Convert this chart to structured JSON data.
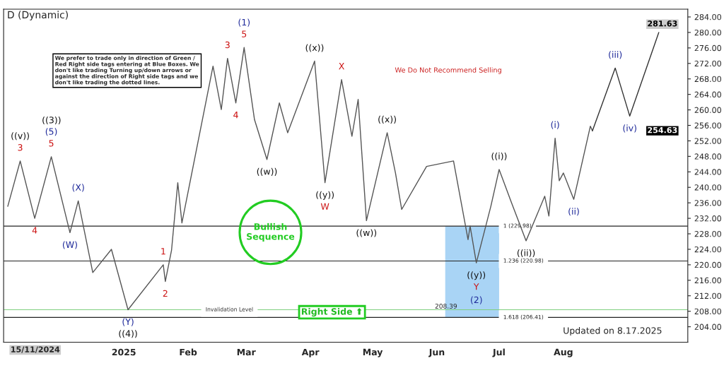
{
  "chart_data": {
    "type": "line",
    "title": "D (Dynamic)",
    "series": [
      {
        "color": "#555555",
        "line_style": "solid",
        "x": [
          "2024-11-06",
          "2024-11-12",
          "2024-11-19",
          "2024-11-27",
          "2024-12-06",
          "2024-12-10",
          "2024-12-17",
          "2024-12-26",
          "2025-01-03",
          "2025-01-20",
          "2025-01-21",
          "2025-01-24",
          "2025-01-27",
          "2025-01-29",
          "2025-02-13",
          "2025-02-17",
          "2025-02-20",
          "2025-02-24",
          "2025-02-28",
          "2025-03-05",
          "2025-03-11",
          "2025-03-17",
          "2025-03-21",
          "2025-04-03",
          "2025-04-08",
          "2025-04-16",
          "2025-04-21",
          "2025-04-24",
          "2025-04-28",
          "2025-05-08",
          "2025-05-12",
          "2025-05-15",
          "2025-05-27",
          "2025-06-09",
          "2025-06-16",
          "2025-06-17",
          "2025-06-20",
          "2025-06-27",
          "2025-07-01",
          "2025-07-07",
          "2025-07-14",
          "2025-07-23",
          "2025-07-25",
          "2025-07-28",
          "2025-07-30",
          "2025-08-01",
          "2025-08-06",
          "2025-08-14",
          "2025-08-15"
        ],
        "values": [
          235.1,
          246.8,
          232.0,
          247.9,
          228.3,
          236.5,
          218.0,
          224.0,
          208.4,
          220.0,
          215.7,
          223.8,
          241.2,
          230.8,
          271.3,
          260.1,
          273.3,
          261.8,
          276.1,
          257.5,
          247.2,
          261.8,
          254.1,
          272.6,
          241.2,
          267.8,
          253.2,
          262.7,
          231.4,
          254.1,
          243.7,
          234.3,
          245.4,
          246.8,
          226.5,
          230.0,
          220.5,
          235.1,
          244.6,
          236.0,
          226.2,
          237.7,
          232.6,
          252.7,
          241.7,
          243.7,
          236.9,
          255.8,
          254.6
        ]
      },
      {
        "color": "#333333",
        "line_style": "solid",
        "x": [
          "2025-08-15",
          "2025-08-26",
          "2025-09-02",
          "2025-09-16"
        ],
        "values": [
          254.6,
          270.8,
          258.4,
          280.0
        ]
      }
    ],
    "xlim": [
      "2024-11-04",
      "2025-09-30"
    ],
    "xticks": [
      {
        "value": "2025-01-01",
        "label": "2025"
      },
      {
        "value": "2025-02-01",
        "label": "Feb"
      },
      {
        "value": "2025-03-01",
        "label": "Mar"
      },
      {
        "value": "2025-04-01",
        "label": "Apr"
      },
      {
        "value": "2025-05-01",
        "label": "May"
      },
      {
        "value": "2025-06-01",
        "label": "Jun"
      },
      {
        "value": "2025-07-01",
        "label": "Jul"
      },
      {
        "value": "2025-08-01",
        "label": "Aug"
      }
    ],
    "ylim": [
      200,
      286
    ],
    "yticks": [
      {
        "value": 204,
        "label": "204.00"
      },
      {
        "value": 208,
        "label": "208.00"
      },
      {
        "value": 212,
        "label": "212.00"
      },
      {
        "value": 216,
        "label": "216.00"
      },
      {
        "value": 220,
        "label": "220.00"
      },
      {
        "value": 224,
        "label": "224.00"
      },
      {
        "value": 228,
        "label": "228.00"
      },
      {
        "value": 232,
        "label": "232.00"
      },
      {
        "value": 236,
        "label": "236.00"
      },
      {
        "value": 240,
        "label": "240.00"
      },
      {
        "value": 244,
        "label": "244.00"
      },
      {
        "value": 248,
        "label": "248.00"
      },
      {
        "value": 252,
        "label": "252.00"
      },
      {
        "value": 256,
        "label": "256.00"
      },
      {
        "value": 260,
        "label": "260.00"
      },
      {
        "value": 264,
        "label": "264.00"
      },
      {
        "value": 268,
        "label": "268.00"
      },
      {
        "value": 272,
        "label": "272.00"
      },
      {
        "value": 276,
        "label": "276.00"
      },
      {
        "value": 280,
        "label": "280.00"
      },
      {
        "value": 284,
        "label": "284.00"
      }
    ],
    "grid": false,
    "legend": false,
    "bands": [
      {
        "axis": "x",
        "from": "2025-06-05",
        "to": "2025-07-01",
        "color": "#a9d4f5"
      }
    ],
    "ref_lines": [
      {
        "axis": "y",
        "value": 208.39,
        "label": "Invalidation Level",
        "color": "#7fcf7f"
      },
      {
        "axis": "y",
        "value": 229.98,
        "label": "1 (229.98)",
        "color": "#222222"
      },
      {
        "axis": "y",
        "value": 220.98,
        "label": "1.236 (220.98)",
        "color": "#222222"
      },
      {
        "axis": "y",
        "value": 206.41,
        "label": "1.618 (206.41)",
        "color": "#222222"
      }
    ],
    "annotations": [
      "We prefer to trade only in direction of Green / Red Right side tags entering at Blue Boxes. We don't like trading Turning up/down arrows or against the direction of Right side tags and we don't like trading the dotted lines.",
      "We Do Not Recommend Selling",
      "Bullish Sequence",
      "Right Side ⬆",
      "Updated on 8.17.2025",
      "15/11/2024",
      {
        "text": "208.39",
        "x": "2025-05-31",
        "y": 208.39
      },
      "281.63",
      "254.63",
      {
        "text": "((v))",
        "x": "2024-11-12",
        "y": 246.8
      },
      {
        "text": "3",
        "x": "2024-11-12",
        "y": 246.8
      },
      {
        "text": "4",
        "x": "2024-11-19",
        "y": 232.0
      },
      "((3))",
      {
        "text": "(5)",
        "x": "2024-11-27",
        "y": 247.9
      },
      {
        "text": "5",
        "x": "2024-11-27",
        "y": 247.9
      },
      {
        "text": "(X)",
        "x": "2024-12-10",
        "y": 236.5
      },
      {
        "text": "(W)",
        "x": "2024-12-06",
        "y": 228.3
      },
      {
        "text": "(Y)",
        "x": "2025-01-03",
        "y": 208.4
      },
      {
        "text": "((4))",
        "x": "2025-01-03",
        "y": 208.4
      },
      {
        "text": "1",
        "x": "2025-01-20",
        "y": 220.0
      },
      {
        "text": "2",
        "x": "2025-01-21",
        "y": 215.7
      },
      {
        "text": "3",
        "x": "2025-02-20",
        "y": 273.3
      },
      {
        "text": "4",
        "x": "2025-02-24",
        "y": 261.8
      },
      {
        "text": "(1)",
        "x": "2025-02-28",
        "y": 276.1
      },
      {
        "text": "5",
        "x": "2025-02-28",
        "y": 276.1
      },
      {
        "text": "((w))",
        "x": "2025-03-11",
        "y": 247.2
      },
      {
        "text": "((x))",
        "x": "2025-04-03",
        "y": 272.6
      },
      {
        "text": "X",
        "x": "2025-04-16",
        "y": 267.8
      },
      {
        "text": "((y))",
        "x": "2025-04-08",
        "y": 241.2
      },
      {
        "text": "W",
        "x": "2025-04-08",
        "y": 241.2
      },
      {
        "text": "((w))",
        "x": "2025-04-28",
        "y": 231.4
      },
      {
        "text": "((x))",
        "x": "2025-05-08",
        "y": 254.1
      },
      {
        "text": "((i))",
        "x": "2025-07-01",
        "y": 244.6
      },
      {
        "text": "((ii))",
        "x": "2025-07-14",
        "y": 226.2
      },
      {
        "text": "((y))",
        "x": "2025-06-20",
        "y": 220.5
      },
      {
        "text": "Y",
        "x": "2025-06-20",
        "y": 220.5
      },
      "(2)",
      {
        "text": "(i)",
        "x": "2025-07-28",
        "y": 252.7
      },
      {
        "text": "(ii)",
        "x": "2025-08-06",
        "y": 236.9
      },
      {
        "text": "(iii)",
        "x": "2025-08-26",
        "y": 270.8
      },
      {
        "text": "(iv)",
        "x": "2025-09-02",
        "y": 258.4
      }
    ]
  }
}
